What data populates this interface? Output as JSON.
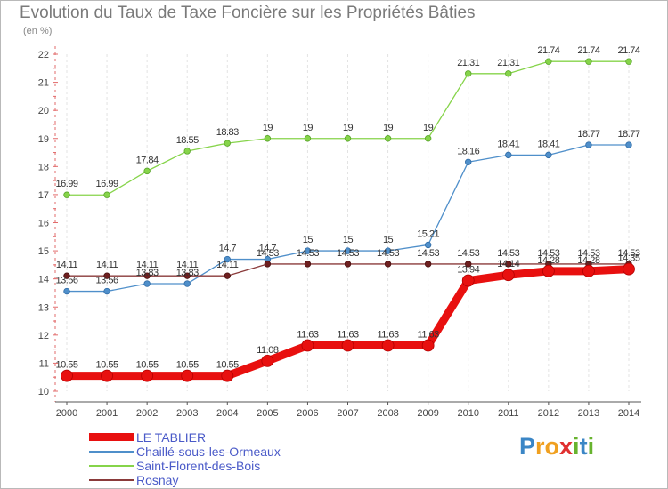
{
  "chart_data": {
    "type": "line",
    "title": "Evolution du Taux de Taxe Foncière sur les Propriétés Bâties",
    "unit_label": "(en %)",
    "x": [
      "2000",
      "2001",
      "2002",
      "2003",
      "2004",
      "2005",
      "2006",
      "2007",
      "2008",
      "2009",
      "2010",
      "2011",
      "2012",
      "2013",
      "2014"
    ],
    "ylim": [
      10,
      22
    ],
    "yticks": [
      10,
      11,
      12,
      13,
      14,
      15,
      16,
      17,
      18,
      19,
      20,
      21,
      22
    ],
    "grid": "vertical dashed",
    "legend_position": "bottom-left",
    "series": [
      {
        "name": "LE TABLIER",
        "color": "#e8100f",
        "values": [
          10.55,
          10.55,
          10.55,
          10.55,
          10.55,
          11.08,
          11.63,
          11.63,
          11.63,
          11.63,
          13.94,
          14.14,
          14.28,
          14.28,
          14.35
        ],
        "labels": [
          "10.55",
          "10.55",
          "10.55",
          "10.55",
          "10.55",
          "11.08",
          "11.63",
          "11.63",
          "11.63",
          "11.63",
          "13.94",
          "14.14",
          "14.28",
          "14.28",
          "14.35"
        ]
      },
      {
        "name": "Chaillé-sous-les-Ormeaux",
        "color": "#4f8fca",
        "values": [
          13.56,
          13.56,
          13.83,
          13.83,
          14.7,
          14.7,
          15,
          15,
          15,
          15.21,
          18.16,
          18.41,
          18.41,
          18.77,
          18.77
        ],
        "labels": [
          "13.56",
          "13.56",
          "13.83",
          "13.83",
          "14.7",
          "14.7",
          "15",
          "15",
          "15",
          "15.21",
          "18.16",
          "18.41",
          "18.41",
          "18.77",
          "18.77"
        ]
      },
      {
        "name": "Saint-Florent-des-Bois",
        "color": "#86d44a",
        "values": [
          16.99,
          16.99,
          17.84,
          18.55,
          18.83,
          19,
          19,
          19,
          19,
          19,
          21.31,
          21.31,
          21.74,
          21.74,
          21.74
        ],
        "labels": [
          "16.99",
          "16.99",
          "17.84",
          "18.55",
          "18.83",
          "19",
          "19",
          "19",
          "19",
          "19",
          "21.31",
          "21.31",
          "21.74",
          "21.74",
          "21.74"
        ]
      },
      {
        "name": "Rosnay",
        "color": "#8a3a3a",
        "values": [
          14.11,
          14.11,
          14.11,
          14.11,
          14.11,
          14.53,
          14.53,
          14.53,
          14.53,
          14.53,
          14.53,
          14.53,
          14.53,
          14.53,
          14.53
        ],
        "labels": [
          "14.11",
          "14.11",
          "14.11",
          "14.11",
          "14.11",
          "14.53",
          "14.53",
          "14.53",
          "14.53",
          "14.53",
          "14.53",
          "14.53",
          "14.53",
          "14.53",
          "14.53"
        ]
      }
    ]
  },
  "brand": {
    "p": "P",
    "ro": "ro",
    "x": "x",
    "i1": "i",
    "t": "t",
    "i2": "i"
  }
}
